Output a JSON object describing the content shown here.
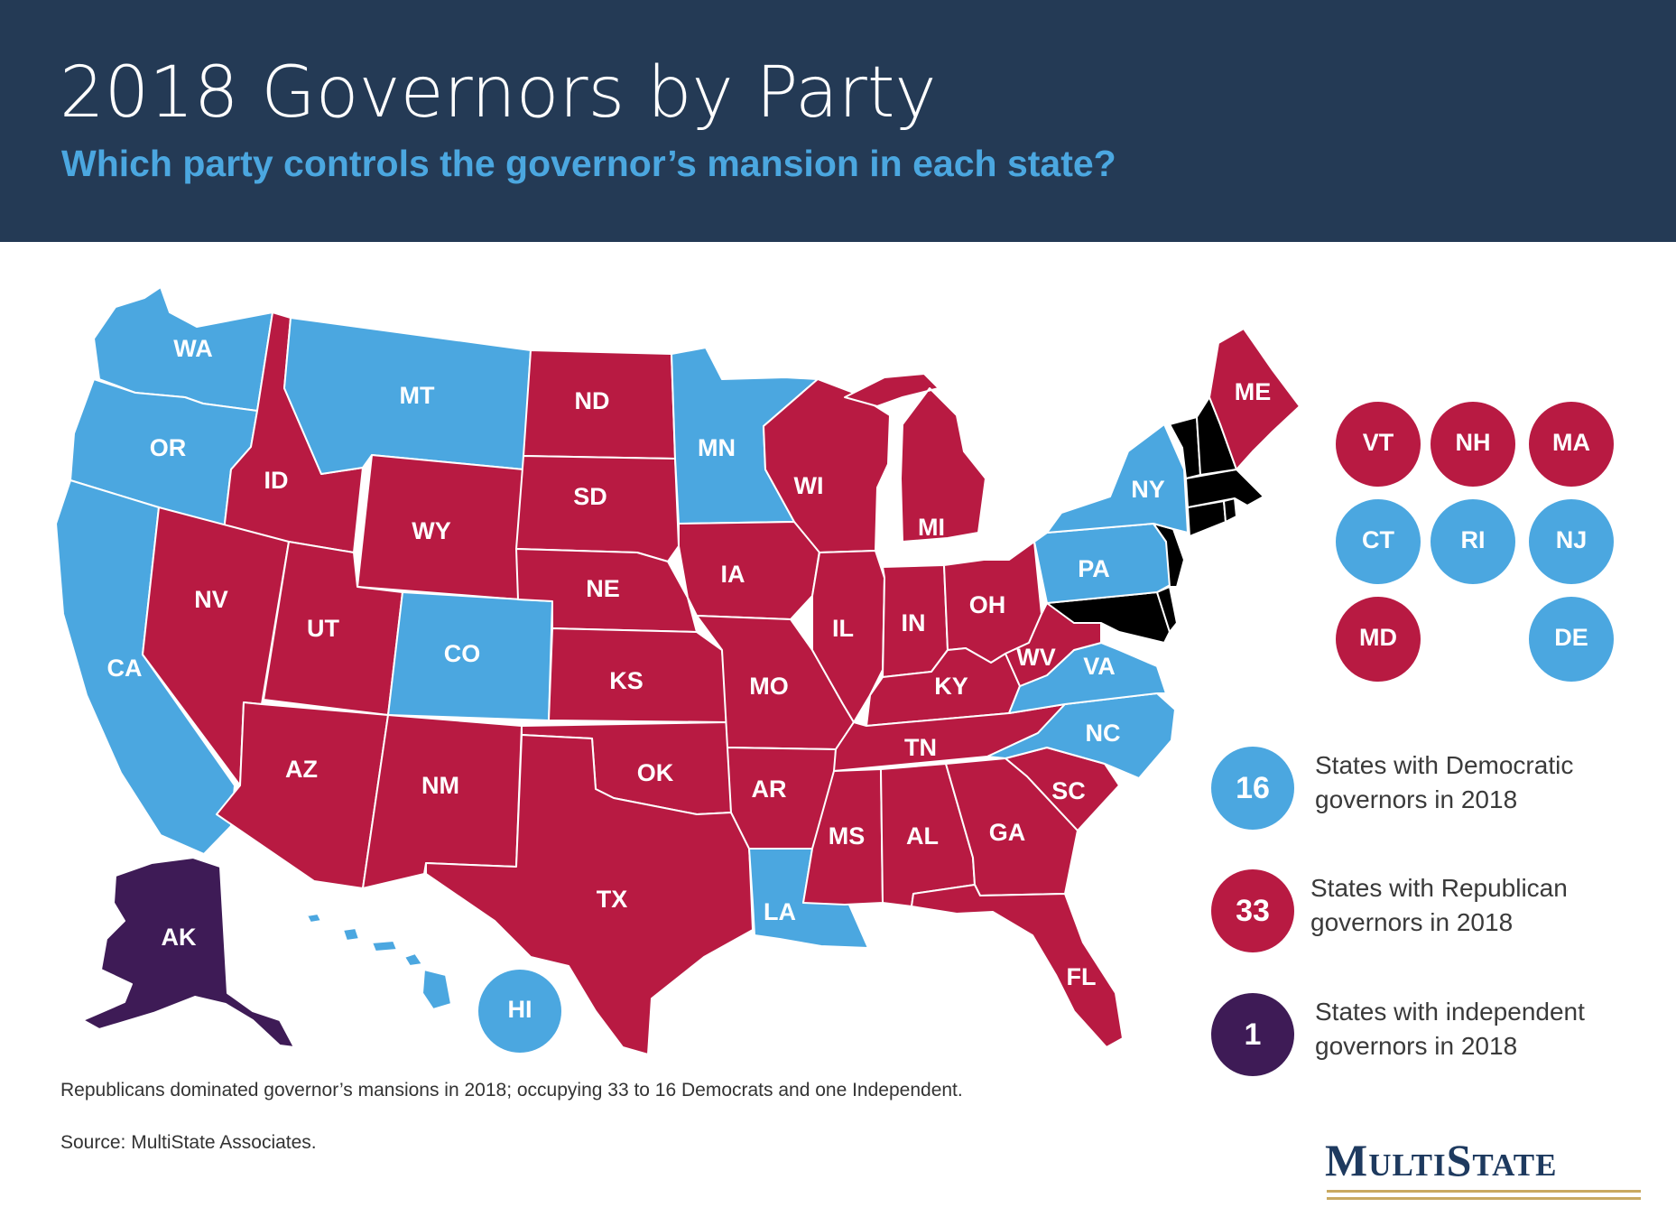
{
  "header": {
    "title": "2018 Governors by Party",
    "subtitle": "Which party controls the governor’s mansion in each state?"
  },
  "colors": {
    "democratic": "#4ba7e0",
    "republican": "#b81a42",
    "independent": "#3e1b56",
    "header_bg": "#243a55"
  },
  "states": {
    "WA": {
      "label": "WA",
      "party": "democratic"
    },
    "OR": {
      "label": "OR",
      "party": "democratic"
    },
    "CA": {
      "label": "CA",
      "party": "democratic"
    },
    "ID": {
      "label": "ID",
      "party": "republican"
    },
    "NV": {
      "label": "NV",
      "party": "republican"
    },
    "MT": {
      "label": "MT",
      "party": "democratic"
    },
    "WY": {
      "label": "WY",
      "party": "republican"
    },
    "UT": {
      "label": "UT",
      "party": "republican"
    },
    "AZ": {
      "label": "AZ",
      "party": "republican"
    },
    "CO": {
      "label": "CO",
      "party": "democratic"
    },
    "NM": {
      "label": "NM",
      "party": "republican"
    },
    "ND": {
      "label": "ND",
      "party": "republican"
    },
    "SD": {
      "label": "SD",
      "party": "republican"
    },
    "NE": {
      "label": "NE",
      "party": "republican"
    },
    "KS": {
      "label": "KS",
      "party": "republican"
    },
    "OK": {
      "label": "OK",
      "party": "republican"
    },
    "TX": {
      "label": "TX",
      "party": "republican"
    },
    "MN": {
      "label": "MN",
      "party": "democratic"
    },
    "IA": {
      "label": "IA",
      "party": "republican"
    },
    "MO": {
      "label": "MO",
      "party": "republican"
    },
    "AR": {
      "label": "AR",
      "party": "republican"
    },
    "LA": {
      "label": "LA",
      "party": "democratic"
    },
    "WI": {
      "label": "WI",
      "party": "republican"
    },
    "IL": {
      "label": "IL",
      "party": "republican"
    },
    "MI": {
      "label": "MI",
      "party": "republican"
    },
    "IN": {
      "label": "IN",
      "party": "republican"
    },
    "OH": {
      "label": "OH",
      "party": "republican"
    },
    "KY": {
      "label": "KY",
      "party": "republican"
    },
    "TN": {
      "label": "TN",
      "party": "republican"
    },
    "MS": {
      "label": "MS",
      "party": "republican"
    },
    "AL": {
      "label": "AL",
      "party": "republican"
    },
    "GA": {
      "label": "GA",
      "party": "republican"
    },
    "FL": {
      "label": "FL",
      "party": "republican"
    },
    "SC": {
      "label": "SC",
      "party": "republican"
    },
    "NC": {
      "label": "NC",
      "party": "democratic"
    },
    "VA": {
      "label": "VA",
      "party": "democratic"
    },
    "WV": {
      "label": "WV",
      "party": "republican"
    },
    "PA": {
      "label": "PA",
      "party": "democratic"
    },
    "NY": {
      "label": "NY",
      "party": "democratic"
    },
    "ME": {
      "label": "ME",
      "party": "republican"
    },
    "AK": {
      "label": "AK",
      "party": "independent"
    },
    "HI": {
      "label": "HI",
      "party": "democratic"
    }
  },
  "small_states": {
    "VT": {
      "label": "VT",
      "party": "republican"
    },
    "NH": {
      "label": "NH",
      "party": "republican"
    },
    "MA": {
      "label": "MA",
      "party": "republican"
    },
    "CT": {
      "label": "CT",
      "party": "democratic"
    },
    "RI": {
      "label": "RI",
      "party": "democratic"
    },
    "NJ": {
      "label": "NJ",
      "party": "democratic"
    },
    "MD": {
      "label": "MD",
      "party": "republican"
    },
    "DE": {
      "label": "DE",
      "party": "democratic"
    }
  },
  "legend": [
    {
      "count": "16",
      "line1": "States with Democratic",
      "line2": "governors in 2018",
      "party": "democratic"
    },
    {
      "count": "33",
      "line1": "States with Republican",
      "line2": "governors in 2018",
      "party": "republican"
    },
    {
      "count": "1",
      "line1": "States with independent",
      "line2": "governors in 2018",
      "party": "independent"
    }
  ],
  "footer": {
    "note": "Republicans dominated governor’s mansions in 2018; occupying 33 to 16 Democrats and one Independent.",
    "source": "Source: MultiState Associates."
  },
  "logo": {
    "text": "MultiState"
  }
}
